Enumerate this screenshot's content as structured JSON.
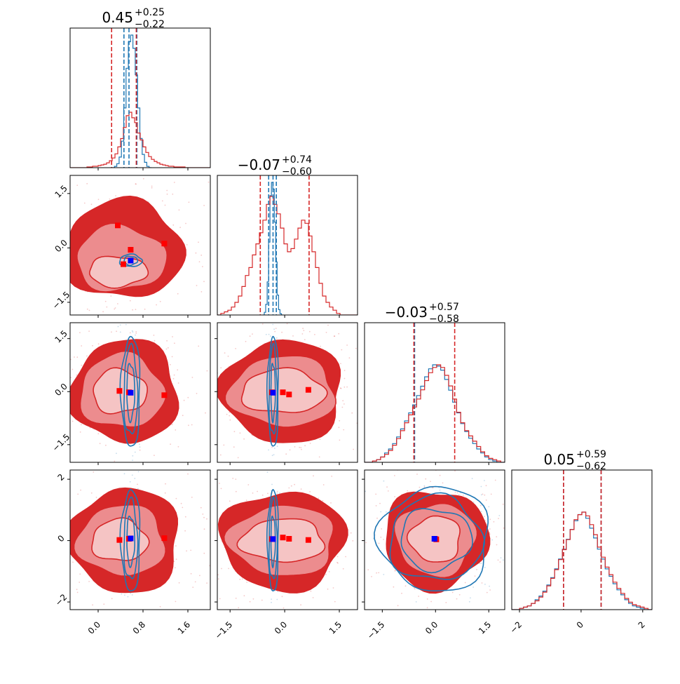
{
  "chart_data": {
    "type": "corner",
    "colors": {
      "series_a": "#d62728",
      "series_b": "#1f77b4",
      "truth": "#ff0000",
      "truth_b": "#0000ff"
    },
    "params": [
      {
        "median": "0.45",
        "plus": "0.25",
        "minus": "0.22"
      },
      {
        "median": "−0.07",
        "plus": "0.74",
        "minus": "0.60"
      },
      {
        "median": "−0.03",
        "plus": "0.57",
        "minus": "0.58"
      },
      {
        "median": "0.05",
        "plus": "0.59",
        "minus": "0.62"
      }
    ],
    "axes": [
      {
        "lim": [
          -0.5,
          2.0
        ],
        "ticks": [
          0.0,
          0.8,
          1.6
        ],
        "tick_labels": [
          "0.0",
          "0.8",
          "1.6"
        ]
      },
      {
        "lim": [
          -1.85,
          2.0
        ],
        "ticks": [
          -1.5,
          0.0,
          1.5
        ],
        "tick_labels": [
          "−1.5",
          "0.0",
          "1.5"
        ]
      },
      {
        "lim": [
          -2.0,
          1.95
        ],
        "ticks": [
          -1.5,
          0.0,
          1.5
        ],
        "tick_labels": [
          "−1.5",
          "0.0",
          "1.5"
        ]
      },
      {
        "lim": [
          -2.25,
          2.3
        ],
        "ticks": [
          -2,
          0,
          2
        ],
        "tick_labels": [
          "−2",
          "0",
          "2"
        ]
      }
    ],
    "quantile_lines": [
      {
        "series_a": [
          0.24,
          0.68
        ],
        "series_b": [
          0.46,
          0.55,
          0.69
        ]
      },
      {
        "series_a": [
          -0.67,
          0.67
        ],
        "series_b": [
          -0.44,
          -0.32,
          -0.23
        ]
      },
      {
        "series_a": [
          -0.61,
          0.54
        ],
        "series_b": [
          -0.59
        ]
      },
      {
        "series_a": [
          -0.57,
          0.65
        ],
        "series_b": [
          -0.57,
          0.65
        ]
      }
    ],
    "hist_a": [
      {
        "bins": [
          -0.5,
          2.0
        ],
        "values": [
          0,
          0,
          0,
          0,
          0,
          0,
          1,
          1,
          2,
          2,
          3,
          4,
          5,
          7,
          10,
          14,
          20,
          30,
          42,
          58,
          75,
          80,
          72,
          65,
          50,
          40,
          30,
          22,
          16,
          12,
          9,
          7,
          5,
          4,
          3,
          2,
          2,
          1,
          1,
          1,
          1,
          0,
          0,
          0,
          0,
          0,
          0,
          0,
          0,
          0
        ]
      },
      {
        "bins": [
          -1.85,
          2.0
        ],
        "values": [
          0,
          1,
          2,
          3,
          5,
          8,
          12,
          18,
          25,
          30,
          38,
          45,
          52,
          60,
          70,
          75,
          70,
          64,
          55,
          45,
          40,
          42,
          48,
          55,
          60,
          58,
          50,
          40,
          30,
          20,
          12,
          8,
          5,
          3,
          1,
          0,
          0,
          0,
          0,
          0
        ]
      },
      {
        "bins": [
          -2.0,
          1.95
        ],
        "values": [
          0,
          0,
          1,
          2,
          4,
          6,
          9,
          13,
          18,
          24,
          30,
          36,
          42,
          48,
          55,
          62,
          68,
          72,
          74,
          72,
          66,
          58,
          48,
          38,
          30,
          24,
          20,
          16,
          12,
          8,
          5,
          3,
          2,
          1,
          0
        ]
      },
      {
        "bins": [
          -2.25,
          2.3
        ],
        "values": [
          0,
          0,
          1,
          2,
          3,
          5,
          7,
          10,
          14,
          19,
          25,
          32,
          40,
          48,
          56,
          64,
          72,
          76,
          78,
          75,
          68,
          60,
          50,
          42,
          34,
          28,
          22,
          17,
          13,
          9,
          6,
          4,
          3,
          2,
          1,
          0
        ]
      }
    ],
    "hist_b": [
      {
        "bins": [
          0.25,
          0.95
        ],
        "values": [
          0,
          1,
          3,
          8,
          20,
          45,
          75,
          95,
          100,
          90,
          70,
          45,
          22,
          10,
          4,
          1,
          0
        ]
      },
      {
        "bins": [
          -0.6,
          -0.05
        ],
        "values": [
          0,
          2,
          8,
          25,
          55,
          90,
          100,
          95,
          70,
          40,
          15,
          4,
          1,
          0
        ]
      },
      {
        "bins": [
          -2.0,
          1.95
        ],
        "values": [
          0,
          0,
          1,
          2,
          4,
          7,
          10,
          14,
          19,
          25,
          31,
          37,
          43,
          50,
          57,
          64,
          70,
          73,
          72,
          69,
          62,
          54,
          45,
          37,
          29,
          23,
          18,
          14,
          10,
          7,
          4,
          2,
          1,
          0,
          0
        ]
      },
      {
        "bins": [
          -2.25,
          2.3
        ],
        "values": [
          0,
          0,
          1,
          2,
          3,
          5,
          8,
          11,
          15,
          20,
          26,
          33,
          41,
          49,
          57,
          65,
          72,
          77,
          79,
          74,
          66,
          58,
          49,
          41,
          33,
          27,
          21,
          16,
          12,
          8,
          5,
          3,
          2,
          1,
          0,
          0
        ]
      }
    ],
    "contours_a": {
      "1_0": [
        [
          0.35,
          -0.65,
          0.52,
          0.42
        ],
        [
          0.4,
          -0.3,
          0.8,
          0.9
        ],
        [
          0.45,
          -0.05,
          1.05,
          1.35
        ]
      ],
      "2_0": [
        [
          0.38,
          0.0,
          0.48,
          0.62
        ],
        [
          0.42,
          0.0,
          0.75,
          1.05
        ],
        [
          0.48,
          0.0,
          0.95,
          1.45
        ]
      ],
      "2_1": [
        [
          -0.05,
          0.0,
          1.15,
          0.62
        ],
        [
          -0.05,
          0.0,
          1.45,
          1.0
        ],
        [
          -0.05,
          0.0,
          1.65,
          1.45
        ]
      ],
      "3_0": [
        [
          0.38,
          0.0,
          0.5,
          0.68
        ],
        [
          0.42,
          0.0,
          0.78,
          1.15
        ],
        [
          0.48,
          0.0,
          0.98,
          1.7
        ]
      ],
      "3_1": [
        [
          -0.05,
          0.0,
          1.15,
          0.7
        ],
        [
          -0.05,
          0.0,
          1.45,
          1.15
        ],
        [
          -0.05,
          0.0,
          1.7,
          1.6
        ]
      ],
      "3_2": [
        [
          0.0,
          0.05,
          0.72,
          0.75
        ],
        [
          0.0,
          0.05,
          1.12,
          1.18
        ],
        [
          0.0,
          0.05,
          1.45,
          1.6
        ]
      ]
    },
    "contours_b": {
      "1_0": [
        [
          0.58,
          -0.35,
          0.12,
          0.12
        ],
        [
          0.58,
          -0.35,
          0.2,
          0.17
        ]
      ],
      "2_0": [
        [
          0.58,
          0.0,
          0.07,
          0.8
        ],
        [
          0.58,
          0.0,
          0.12,
          1.25
        ],
        [
          0.58,
          0.0,
          0.17,
          1.55
        ]
      ],
      "2_1": [
        [
          -0.32,
          0.0,
          0.06,
          0.8
        ],
        [
          -0.32,
          0.0,
          0.11,
          1.25
        ],
        [
          -0.32,
          0.0,
          0.15,
          1.55
        ]
      ],
      "3_0": [
        [
          0.58,
          0.0,
          0.07,
          0.8
        ],
        [
          0.58,
          0.0,
          0.12,
          1.3
        ],
        [
          0.58,
          0.0,
          0.17,
          1.65
        ]
      ],
      "3_1": [
        [
          -0.32,
          0.0,
          0.06,
          0.8
        ],
        [
          -0.32,
          0.0,
          0.11,
          1.3
        ],
        [
          -0.32,
          0.0,
          0.15,
          1.65
        ]
      ],
      "3_2": [
        [
          0.0,
          0.05,
          1.0,
          1.0
        ],
        [
          0.0,
          0.05,
          1.3,
          1.38
        ],
        [
          0.0,
          0.05,
          1.55,
          1.7
        ]
      ]
    },
    "markers_a": {
      "1_0": [
        [
          0.35,
          0.62
        ],
        [
          0.58,
          -0.05
        ],
        [
          0.45,
          -0.45
        ],
        [
          1.18,
          0.12
        ]
      ],
      "2_0": [
        [
          0.38,
          0.02
        ],
        [
          0.55,
          -0.02
        ],
        [
          1.18,
          -0.1
        ]
      ],
      "2_1": [
        [
          -0.05,
          -0.02
        ],
        [
          0.12,
          -0.08
        ],
        [
          0.65,
          0.05
        ],
        [
          -0.35,
          -0.02
        ]
      ],
      "3_0": [
        [
          0.38,
          0.02
        ],
        [
          0.55,
          0.06
        ],
        [
          1.18,
          0.08
        ]
      ],
      "3_1": [
        [
          -0.05,
          0.1
        ],
        [
          0.12,
          0.06
        ],
        [
          0.65,
          0.02
        ],
        [
          -0.35,
          0.05
        ]
      ],
      "3_2": [
        [
          -0.02,
          0.06
        ],
        [
          0.02,
          0.04
        ]
      ]
    },
    "markers_b": {
      "1_0": [
        [
          0.58,
          -0.35
        ]
      ],
      "2_0": [
        [
          0.58,
          -0.03
        ]
      ],
      "2_1": [
        [
          -0.32,
          -0.03
        ]
      ],
      "3_0": [
        [
          0.58,
          0.07
        ]
      ],
      "3_1": [
        [
          -0.32,
          0.05
        ]
      ],
      "3_2": [
        [
          -0.03,
          0.06
        ]
      ]
    }
  }
}
